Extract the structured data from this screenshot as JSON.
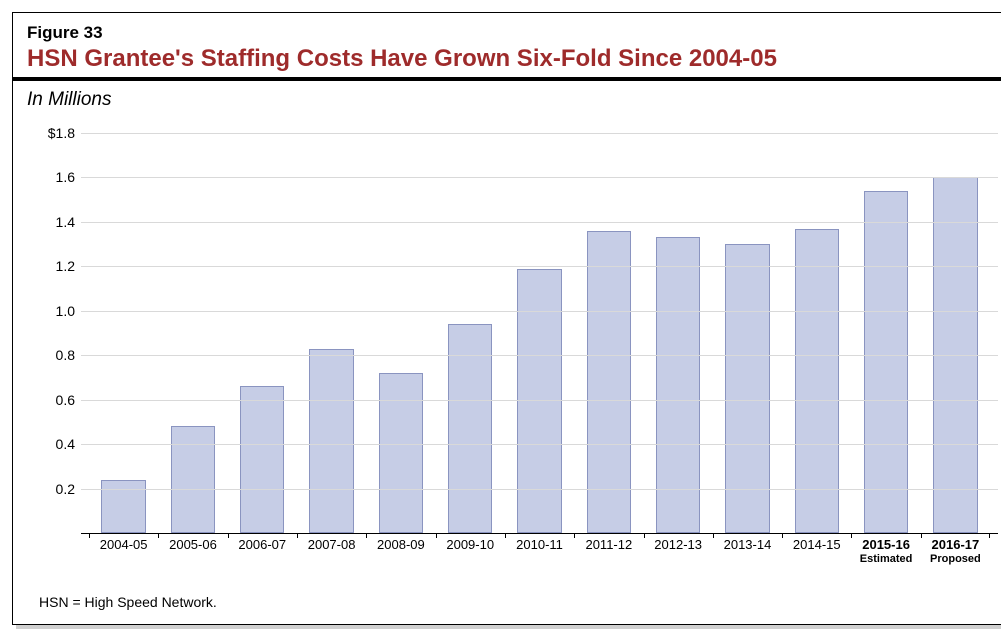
{
  "figure": {
    "label": "Figure 33",
    "title": "HSN Grantee's Staffing Costs Have Grown Six-Fold Since 2004-05",
    "title_color": "#9e2b2b",
    "subtitle": "In Millions",
    "footnote": "HSN = High Speed Network."
  },
  "chart": {
    "type": "bar",
    "background_color": "#ffffff",
    "grid_color": "#d9d9d9",
    "axis_color": "#000000",
    "bar_fill": "#c6cde6",
    "bar_stroke": "#8a94c0",
    "y_axis": {
      "min": 0,
      "max": 1.8,
      "tick_step": 0.2,
      "ticks": [
        "$1.8",
        "1.6",
        "1.4",
        "1.2",
        "1.0",
        "0.8",
        "0.6",
        "0.4",
        "0.2"
      ],
      "label_fontsize": 14
    },
    "x_axis": {
      "label_fontsize": 13
    },
    "data": [
      {
        "label": "2004-05",
        "value": 0.24
      },
      {
        "label": "2005-06",
        "value": 0.48
      },
      {
        "label": "2006-07",
        "value": 0.66
      },
      {
        "label": "2007-08",
        "value": 0.83
      },
      {
        "label": "2008-09",
        "value": 0.72
      },
      {
        "label": "2009-10",
        "value": 0.94
      },
      {
        "label": "2010-11",
        "value": 1.19
      },
      {
        "label": "2011-12",
        "value": 1.36
      },
      {
        "label": "2012-13",
        "value": 1.33
      },
      {
        "label": "2013-14",
        "value": 1.3
      },
      {
        "label": "2014-15",
        "value": 1.37
      },
      {
        "label": "2015-16",
        "sublabel": "Estimated",
        "bold": true,
        "value": 1.54
      },
      {
        "label": "2016-17",
        "sublabel": "Proposed",
        "bold": true,
        "value": 1.6
      }
    ]
  }
}
